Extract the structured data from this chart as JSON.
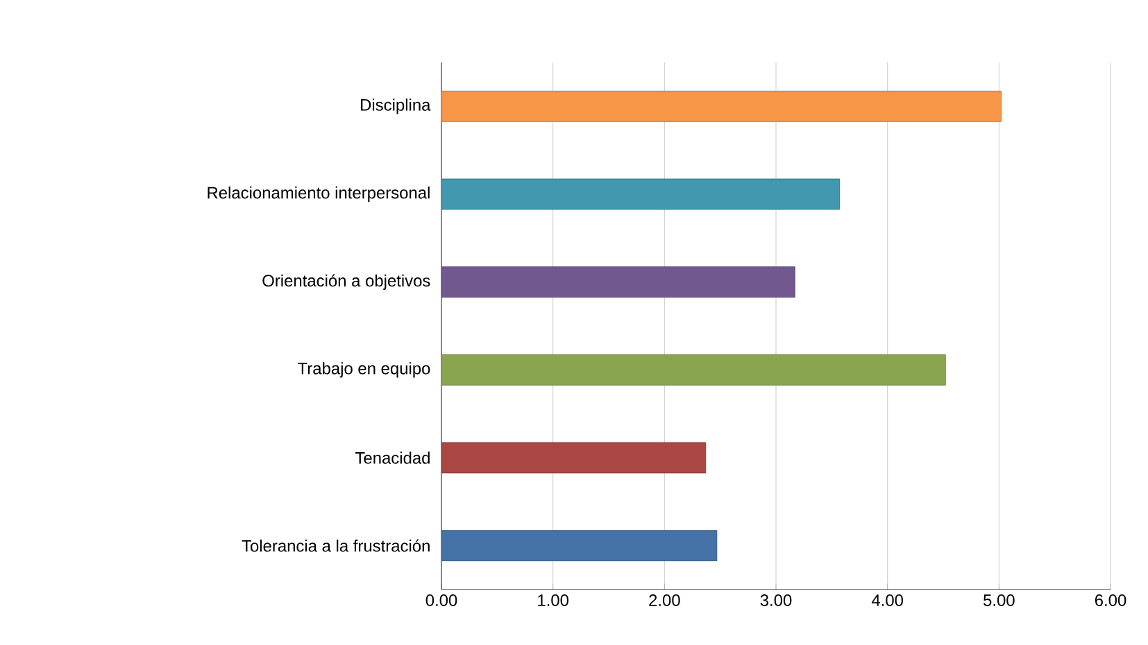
{
  "chart_data": {
    "type": "bar",
    "orientation": "horizontal",
    "categories": [
      "Disciplina",
      "Relacionamiento interpersonal",
      "Orientación a objetivos",
      "Trabajo en equipo",
      "Tenacidad",
      "Tolerancia a la frustración"
    ],
    "values": [
      5.02,
      3.57,
      3.17,
      4.52,
      2.37,
      2.47
    ],
    "colors": [
      "#f79646",
      "#4198af",
      "#71588f",
      "#89a54e",
      "#aa4643",
      "#4572a7"
    ],
    "xlim": [
      0,
      6
    ],
    "xticks": [
      {
        "value": 0,
        "label": "0.00"
      },
      {
        "value": 1,
        "label": "1.00"
      },
      {
        "value": 2,
        "label": "2.00"
      },
      {
        "value": 3,
        "label": "3.00"
      },
      {
        "value": 4,
        "label": "4.00"
      },
      {
        "value": 5,
        "label": "5.00"
      },
      {
        "value": 6,
        "label": "6.00"
      }
    ],
    "grid": "x"
  }
}
